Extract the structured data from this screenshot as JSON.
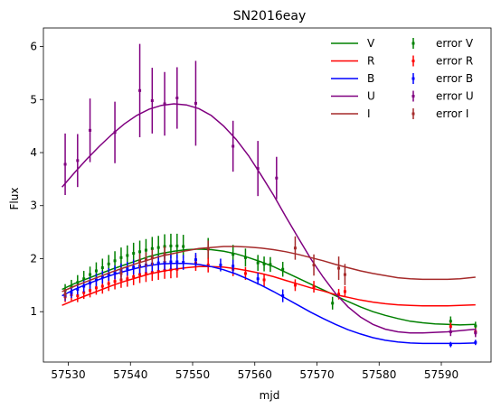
{
  "chart_data": {
    "type": "line",
    "title": "SN2016eay",
    "xlabel": "mjd",
    "ylabel": "Flux",
    "xlim": [
      57526,
      57598
    ],
    "ylim": [
      0.05,
      6.35
    ],
    "xticks": [
      57530,
      57540,
      57550,
      57560,
      57570,
      57580,
      57590
    ],
    "yticks": [
      1,
      2,
      3,
      4,
      5,
      6
    ],
    "grid": false,
    "legend_placement": "top-right",
    "series": [
      {
        "name": "V",
        "error_name": "error V",
        "color": "#008000",
        "curve_x": [
          57529,
          57531,
          57533,
          57535,
          57537,
          57539,
          57541,
          57543,
          57545,
          57547,
          57549,
          57551,
          57553,
          57555,
          57557,
          57559,
          57561,
          57563,
          57565,
          57567,
          57569,
          57571,
          57573,
          57575,
          57577,
          57579,
          57581,
          57583,
          57585,
          57587,
          57589,
          57591,
          57593,
          57595.5
        ],
        "curve_y": [
          1.42,
          1.53,
          1.62,
          1.71,
          1.8,
          1.88,
          1.96,
          2.04,
          2.1,
          2.14,
          2.17,
          2.18,
          2.17,
          2.14,
          2.09,
          2.02,
          1.94,
          1.85,
          1.74,
          1.63,
          1.52,
          1.41,
          1.3,
          1.19,
          1.09,
          1.0,
          0.93,
          0.87,
          0.82,
          0.79,
          0.77,
          0.76,
          0.75,
          0.76
        ],
        "points": [
          {
            "x": 57529.5,
            "y": 1.4,
            "err": 0.12
          },
          {
            "x": 57530.5,
            "y": 1.47,
            "err": 0.13
          },
          {
            "x": 57531.5,
            "y": 1.55,
            "err": 0.14
          },
          {
            "x": 57532.5,
            "y": 1.62,
            "err": 0.15
          },
          {
            "x": 57533.5,
            "y": 1.7,
            "err": 0.15
          },
          {
            "x": 57534.5,
            "y": 1.77,
            "err": 0.16
          },
          {
            "x": 57535.5,
            "y": 1.83,
            "err": 0.17
          },
          {
            "x": 57536.5,
            "y": 1.9,
            "err": 0.17
          },
          {
            "x": 57537.5,
            "y": 1.96,
            "err": 0.18
          },
          {
            "x": 57538.5,
            "y": 2.02,
            "err": 0.19
          },
          {
            "x": 57539.5,
            "y": 2.06,
            "err": 0.19
          },
          {
            "x": 57540.5,
            "y": 2.1,
            "err": 0.2
          },
          {
            "x": 57541.5,
            "y": 2.13,
            "err": 0.21
          },
          {
            "x": 57542.5,
            "y": 2.16,
            "err": 0.21
          },
          {
            "x": 57543.5,
            "y": 2.19,
            "err": 0.22
          },
          {
            "x": 57544.5,
            "y": 2.21,
            "err": 0.22
          },
          {
            "x": 57545.5,
            "y": 2.23,
            "err": 0.23
          },
          {
            "x": 57546.5,
            "y": 2.24,
            "err": 0.23
          },
          {
            "x": 57547.5,
            "y": 2.24,
            "err": 0.23
          },
          {
            "x": 57548.5,
            "y": 2.23,
            "err": 0.22
          },
          {
            "x": 57552.5,
            "y": 2.19,
            "err": 0.2
          },
          {
            "x": 57556.5,
            "y": 2.08,
            "err": 0.18
          },
          {
            "x": 57558.5,
            "y": 2.02,
            "err": 0.17
          },
          {
            "x": 57560.5,
            "y": 1.92,
            "err": 0.15
          },
          {
            "x": 57561.5,
            "y": 1.9,
            "err": 0.14
          },
          {
            "x": 57562.5,
            "y": 1.89,
            "err": 0.14
          },
          {
            "x": 57564.5,
            "y": 1.8,
            "err": 0.14
          },
          {
            "x": 57572.5,
            "y": 1.16,
            "err": 0.12
          },
          {
            "x": 57591.5,
            "y": 0.82,
            "err": 0.09
          },
          {
            "x": 57595.5,
            "y": 0.73,
            "err": 0.08
          }
        ]
      },
      {
        "name": "R",
        "error_name": "error R",
        "color": "#ff0000",
        "curve_x": [
          57529,
          57531,
          57533,
          57535,
          57537,
          57539,
          57541,
          57543,
          57545,
          57547,
          57549,
          57551,
          57553,
          57555,
          57557,
          57559,
          57561,
          57563,
          57565,
          57567,
          57569,
          57571,
          57573,
          57575,
          57577,
          57579,
          57581,
          57583,
          57585,
          57587,
          57589,
          57591,
          57593,
          57595.5
        ],
        "curve_y": [
          1.12,
          1.22,
          1.31,
          1.4,
          1.49,
          1.57,
          1.64,
          1.71,
          1.76,
          1.8,
          1.83,
          1.85,
          1.85,
          1.84,
          1.81,
          1.77,
          1.72,
          1.66,
          1.59,
          1.52,
          1.45,
          1.39,
          1.32,
          1.27,
          1.22,
          1.18,
          1.15,
          1.13,
          1.12,
          1.11,
          1.11,
          1.11,
          1.12,
          1.13
        ],
        "points": [
          {
            "x": 57529.5,
            "y": 1.28,
            "err": 0.1
          },
          {
            "x": 57530.5,
            "y": 1.32,
            "err": 0.11
          },
          {
            "x": 57531.5,
            "y": 1.3,
            "err": 0.12
          },
          {
            "x": 57532.5,
            "y": 1.36,
            "err": 0.12
          },
          {
            "x": 57533.5,
            "y": 1.4,
            "err": 0.13
          },
          {
            "x": 57534.5,
            "y": 1.45,
            "err": 0.13
          },
          {
            "x": 57535.5,
            "y": 1.48,
            "err": 0.14
          },
          {
            "x": 57536.5,
            "y": 1.53,
            "err": 0.14
          },
          {
            "x": 57537.5,
            "y": 1.57,
            "err": 0.15
          },
          {
            "x": 57538.5,
            "y": 1.6,
            "err": 0.15
          },
          {
            "x": 57539.5,
            "y": 1.62,
            "err": 0.15
          },
          {
            "x": 57540.5,
            "y": 1.66,
            "err": 0.16
          },
          {
            "x": 57541.5,
            "y": 1.7,
            "err": 0.16
          },
          {
            "x": 57542.5,
            "y": 1.72,
            "err": 0.16
          },
          {
            "x": 57543.5,
            "y": 1.74,
            "err": 0.16
          },
          {
            "x": 57544.5,
            "y": 1.76,
            "err": 0.16
          },
          {
            "x": 57545.5,
            "y": 1.78,
            "err": 0.16
          },
          {
            "x": 57546.5,
            "y": 1.79,
            "err": 0.16
          },
          {
            "x": 57547.5,
            "y": 1.8,
            "err": 0.16
          },
          {
            "x": 57550.5,
            "y": 1.92,
            "err": 0.15
          },
          {
            "x": 57552.5,
            "y": 1.88,
            "err": 0.14
          },
          {
            "x": 57556.5,
            "y": 1.8,
            "err": 0.13
          },
          {
            "x": 57558.5,
            "y": 1.72,
            "err": 0.12
          },
          {
            "x": 57561.5,
            "y": 1.6,
            "err": 0.12
          },
          {
            "x": 57566.5,
            "y": 1.5,
            "err": 0.11
          },
          {
            "x": 57569.5,
            "y": 1.47,
            "err": 0.11
          },
          {
            "x": 57573.5,
            "y": 1.33,
            "err": 0.1
          },
          {
            "x": 57574.5,
            "y": 1.38,
            "err": 0.1
          },
          {
            "x": 57591.5,
            "y": 0.72,
            "err": 0.07
          },
          {
            "x": 57595.5,
            "y": 0.62,
            "err": 0.07
          }
        ]
      },
      {
        "name": "B",
        "error_name": "error B",
        "color": "#0000ff",
        "curve_x": [
          57529,
          57531,
          57533,
          57535,
          57537,
          57539,
          57541,
          57543,
          57545,
          57547,
          57549,
          57551,
          57553,
          57555,
          57557,
          57559,
          57561,
          57563,
          57565,
          57567,
          57569,
          57571,
          57573,
          57575,
          57577,
          57579,
          57581,
          57583,
          57585,
          57587,
          57589,
          57591,
          57593,
          57595.5
        ],
        "curve_y": [
          1.3,
          1.42,
          1.52,
          1.61,
          1.69,
          1.76,
          1.82,
          1.87,
          1.9,
          1.91,
          1.91,
          1.89,
          1.85,
          1.79,
          1.71,
          1.61,
          1.5,
          1.38,
          1.25,
          1.12,
          0.99,
          0.87,
          0.76,
          0.66,
          0.58,
          0.51,
          0.46,
          0.43,
          0.41,
          0.4,
          0.4,
          0.4,
          0.4,
          0.41
        ],
        "points": [
          {
            "x": 57529.5,
            "y": 1.3,
            "err": 0.09
          },
          {
            "x": 57530.5,
            "y": 1.36,
            "err": 0.1
          },
          {
            "x": 57531.5,
            "y": 1.42,
            "err": 0.1
          },
          {
            "x": 57532.5,
            "y": 1.48,
            "err": 0.11
          },
          {
            "x": 57533.5,
            "y": 1.54,
            "err": 0.11
          },
          {
            "x": 57534.5,
            "y": 1.6,
            "err": 0.12
          },
          {
            "x": 57535.5,
            "y": 1.65,
            "err": 0.12
          },
          {
            "x": 57536.5,
            "y": 1.7,
            "err": 0.12
          },
          {
            "x": 57537.5,
            "y": 1.74,
            "err": 0.13
          },
          {
            "x": 57538.5,
            "y": 1.78,
            "err": 0.13
          },
          {
            "x": 57539.5,
            "y": 1.81,
            "err": 0.13
          },
          {
            "x": 57540.5,
            "y": 1.84,
            "err": 0.14
          },
          {
            "x": 57541.5,
            "y": 1.86,
            "err": 0.14
          },
          {
            "x": 57542.5,
            "y": 1.88,
            "err": 0.14
          },
          {
            "x": 57543.5,
            "y": 1.9,
            "err": 0.14
          },
          {
            "x": 57544.5,
            "y": 1.92,
            "err": 0.14
          },
          {
            "x": 57545.5,
            "y": 1.93,
            "err": 0.14
          },
          {
            "x": 57546.5,
            "y": 1.94,
            "err": 0.14
          },
          {
            "x": 57547.5,
            "y": 1.94,
            "err": 0.14
          },
          {
            "x": 57548.5,
            "y": 1.93,
            "err": 0.14
          },
          {
            "x": 57550.5,
            "y": 1.98,
            "err": 0.13
          },
          {
            "x": 57554.5,
            "y": 1.88,
            "err": 0.12
          },
          {
            "x": 57556.5,
            "y": 1.86,
            "err": 0.12
          },
          {
            "x": 57560.5,
            "y": 1.62,
            "err": 0.11
          },
          {
            "x": 57564.5,
            "y": 1.3,
            "err": 0.12
          },
          {
            "x": 57591.5,
            "y": 0.38,
            "err": 0.05
          },
          {
            "x": 57595.5,
            "y": 0.42,
            "err": 0.05
          }
        ]
      },
      {
        "name": "U",
        "error_name": "error U",
        "color": "#800080",
        "curve_x": [
          57529,
          57531,
          57533,
          57535,
          57537,
          57539,
          57541,
          57543,
          57545,
          57547,
          57549,
          57551,
          57553,
          57555,
          57557,
          57559,
          57561,
          57563,
          57565,
          57567,
          57569,
          57571,
          57573,
          57575,
          57577,
          57579,
          57581,
          57583,
          57585,
          57587,
          57589,
          57591,
          57593,
          57595.5
        ],
        "curve_y": [
          3.35,
          3.62,
          3.88,
          4.12,
          4.34,
          4.54,
          4.7,
          4.82,
          4.89,
          4.92,
          4.9,
          4.83,
          4.7,
          4.5,
          4.25,
          3.94,
          3.58,
          3.2,
          2.79,
          2.39,
          2.0,
          1.65,
          1.34,
          1.09,
          0.9,
          0.76,
          0.67,
          0.62,
          0.6,
          0.6,
          0.61,
          0.62,
          0.64,
          0.67
        ],
        "points": [
          {
            "x": 57529.5,
            "y": 3.78,
            "err": 0.58
          },
          {
            "x": 57531.5,
            "y": 3.85,
            "err": 0.5
          },
          {
            "x": 57533.5,
            "y": 4.42,
            "err": 0.6
          },
          {
            "x": 57537.5,
            "y": 4.38,
            "err": 0.58
          },
          {
            "x": 57541.5,
            "y": 5.17,
            "err": 0.88
          },
          {
            "x": 57543.5,
            "y": 4.98,
            "err": 0.62
          },
          {
            "x": 57545.5,
            "y": 4.92,
            "err": 0.6
          },
          {
            "x": 57547.5,
            "y": 5.03,
            "err": 0.58
          },
          {
            "x": 57550.5,
            "y": 4.93,
            "err": 0.8
          },
          {
            "x": 57556.5,
            "y": 4.12,
            "err": 0.48
          },
          {
            "x": 57560.5,
            "y": 3.7,
            "err": 0.52
          },
          {
            "x": 57563.5,
            "y": 3.52,
            "err": 0.4
          },
          {
            "x": 57591.5,
            "y": 0.62,
            "err": 0.08
          },
          {
            "x": 57595.5,
            "y": 0.6,
            "err": 0.08
          }
        ]
      },
      {
        "name": "I",
        "error_name": "error I",
        "color": "#a52a2a",
        "curve_x": [
          57529,
          57531,
          57533,
          57535,
          57537,
          57539,
          57541,
          57543,
          57545,
          57547,
          57549,
          57551,
          57553,
          57555,
          57557,
          57559,
          57561,
          57563,
          57565,
          57567,
          57569,
          57571,
          57573,
          57575,
          57577,
          57579,
          57581,
          57583,
          57585,
          57587,
          57589,
          57591,
          57593,
          57595.5
        ],
        "curve_y": [
          1.38,
          1.48,
          1.57,
          1.66,
          1.75,
          1.83,
          1.91,
          1.98,
          2.05,
          2.1,
          2.15,
          2.19,
          2.21,
          2.23,
          2.23,
          2.22,
          2.2,
          2.17,
          2.13,
          2.08,
          2.02,
          1.96,
          1.89,
          1.83,
          1.77,
          1.72,
          1.68,
          1.64,
          1.62,
          1.61,
          1.61,
          1.61,
          1.62,
          1.65
        ],
        "points": [
          {
            "x": 57529.5,
            "y": 1.33,
            "err": 0.1
          },
          {
            "x": 57538.5,
            "y": 1.72,
            "err": 0.12
          },
          {
            "x": 57541.5,
            "y": 1.95,
            "err": 0.14
          },
          {
            "x": 57542.5,
            "y": 1.98,
            "err": 0.14
          },
          {
            "x": 57543.5,
            "y": 2.02,
            "err": 0.15
          },
          {
            "x": 57545.5,
            "y": 2.08,
            "err": 0.15
          },
          {
            "x": 57552.5,
            "y": 2.18,
            "err": 0.16
          },
          {
            "x": 57566.5,
            "y": 2.2,
            "err": 0.22
          },
          {
            "x": 57569.5,
            "y": 1.88,
            "err": 0.2
          },
          {
            "x": 57573.5,
            "y": 1.82,
            "err": 0.22
          },
          {
            "x": 57574.5,
            "y": 1.7,
            "err": 0.2
          }
        ]
      }
    ]
  }
}
